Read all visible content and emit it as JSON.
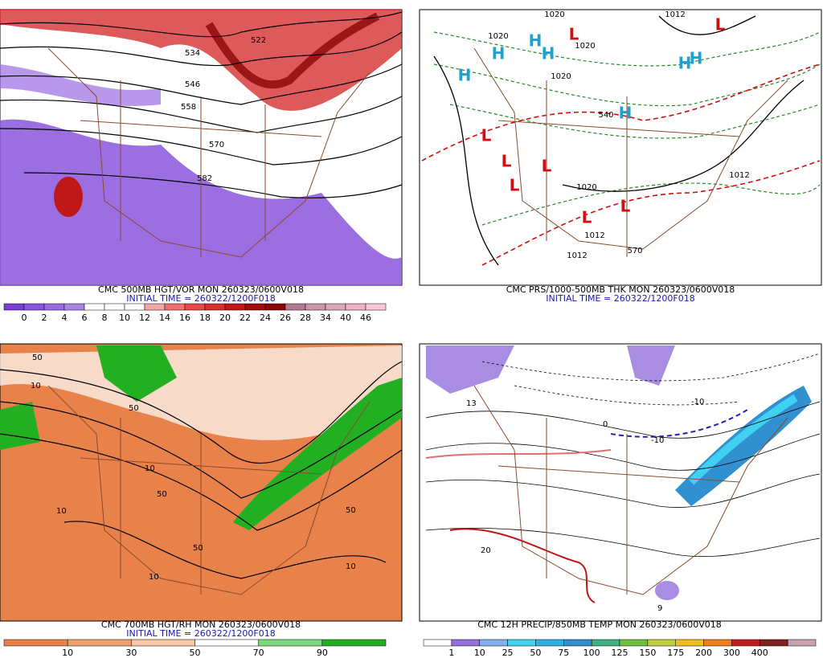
{
  "panels": [
    {
      "title": "CMC 500MB HGT/VOR MON 260323/0600V018",
      "initial_time": "INITIAL TIME = 260322/1200F018",
      "colorbar": {
        "colors": [
          "#7b3fd6",
          "#8a55dc",
          "#9a6ce2",
          "#a883e8",
          "#ffffff",
          "#ffffff",
          "#ffffff",
          "#f2a7a7",
          "#f07070",
          "#e84848",
          "#d63030",
          "#c01818",
          "#a00c0c",
          "#8a0606",
          "#b07a90",
          "#c898a8",
          "#d8aab8",
          "#f0b0c8",
          "#f8c8d8"
        ],
        "labels": [
          0,
          2,
          4,
          6,
          8,
          10,
          12,
          14,
          16,
          18,
          20,
          22,
          24,
          26,
          28,
          34,
          40,
          46
        ]
      },
      "contour_labels": [
        "522",
        "534",
        "546",
        "558",
        "570",
        "582"
      ],
      "centers": []
    },
    {
      "title": "CMC PRS/1000-500MB THK MON 260323/0600V018",
      "initial_time": "INITIAL TIME = 260322/1200F018",
      "colorbar": null,
      "contour_labels": [
        "1020",
        "1012",
        "1020",
        "1020",
        "1020",
        "540",
        "1020",
        "1012",
        "1012",
        "1012",
        "570"
      ],
      "centers": [
        "H",
        "H",
        "H",
        "H",
        "H",
        "H",
        "H",
        "L",
        "L",
        "L",
        "L",
        "L",
        "L",
        "L",
        "L"
      ]
    },
    {
      "title": "CMC 700MB HGT/RH MON 260323/0600V018",
      "initial_time": "INITIAL TIME = 260322/1200F018",
      "colorbar": {
        "colors": [
          "#e8824a",
          "#f0a070",
          "#f8c8a8",
          "#ffffff",
          "#7ed87e",
          "#22b022"
        ],
        "labels": [
          10,
          30,
          50,
          70,
          90
        ]
      },
      "contour_labels": [
        "50",
        "10",
        "50",
        "10",
        "10",
        "50",
        "50",
        "10",
        "10",
        "50"
      ],
      "centers": []
    },
    {
      "title": "CMC 12H PRECIP/850MB TEMP MON 260323/0600V018",
      "initial_time": null,
      "colorbar": {
        "colors": [
          "#ffffff",
          "#9370db",
          "#7fb0f0",
          "#40d0f0",
          "#30b0e0",
          "#3090d0",
          "#40b080",
          "#70c040",
          "#c0d040",
          "#f0c020",
          "#f08020",
          "#c02020",
          "#802020",
          "#c8a0b0"
        ],
        "labels": [
          1,
          10,
          25,
          50,
          75,
          100,
          125,
          150,
          175,
          200,
          300,
          400
        ]
      },
      "contour_labels": [
        "13",
        "0",
        "-10",
        "-10",
        "20",
        "9"
      ],
      "centers": []
    }
  ]
}
